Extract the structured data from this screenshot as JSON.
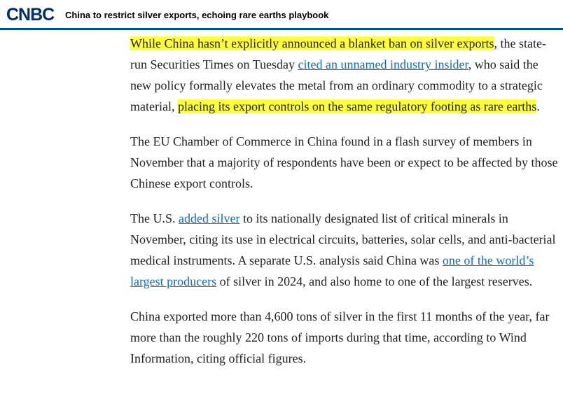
{
  "header": {
    "logo_text": "CNBC",
    "headline": "China to restrict silver exports, echoing rare earths playbook"
  },
  "article": {
    "p1": {
      "hl1": "While China hasn’t explicitly announced a blanket ban on silver exports",
      "t1": ", the state-run Securities Times on Tuesday ",
      "link1": "cited an unnamed industry insider",
      "t2": ", who said the new policy formally elevates the metal from an ordinary commodity to a strategic material, ",
      "hl2": "placing its export controls on the same regulatory footing as rare earths",
      "t3": "."
    },
    "p2": {
      "text": "The EU Chamber of Commerce in China found in a flash survey of members in November that a majority of respondents have been or expect to be affected by those Chinese export controls."
    },
    "p3": {
      "t1": "The U.S. ",
      "link1": "added silver",
      "t2": " to its nationally designated list of critical minerals in November, citing its use in electrical circuits, batteries, solar cells, and anti-bacterial medical instruments. A separate U.S. analysis said China was ",
      "link2": "one of the world’s largest producers",
      "t3": " of silver in 2024, and also home to one of the largest reserves."
    },
    "p4": {
      "text": "China exported more than 4,600 tons of silver in the first 11 months of the year, far more than the roughly 220 tons of imports during that time, according to Wind Information, citing official figures."
    }
  },
  "colors": {
    "brand": "#002f6c",
    "header_rule": "#005594",
    "highlight": "#ffff3d",
    "link": "#0a6ec0"
  }
}
